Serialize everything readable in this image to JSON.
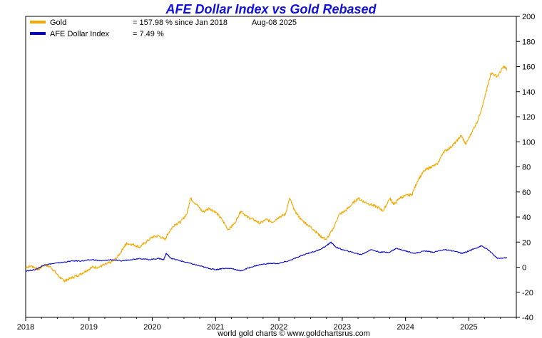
{
  "chart_data": {
    "type": "line",
    "title": "AFE Dollar Index vs Gold Rebased",
    "date_label": "Aug-08  2025",
    "footer": "world gold charts © www.goldchartsrus.com",
    "xlim": [
      2018.0,
      2025.75
    ],
    "ylim": [
      -40,
      200
    ],
    "x_ticks": [
      "2018",
      "2019",
      "2020",
      "2021",
      "2022",
      "2023",
      "2024",
      "2025"
    ],
    "y_ticks": [
      "200",
      "180",
      "160",
      "140",
      "120",
      "100",
      "80",
      "60",
      "40",
      "20",
      "0",
      "-20",
      "-40"
    ],
    "y_axis_side": "right",
    "grid": false,
    "legend_position": "top-left",
    "series": [
      {
        "name": "Gold",
        "legend_value": "= 157.98 % since Jan 2018",
        "color": "#f5a800",
        "x": [
          2018.0,
          2018.1,
          2018.2,
          2018.3,
          2018.4,
          2018.5,
          2018.6,
          2018.65,
          2018.75,
          2018.85,
          2018.95,
          2019.05,
          2019.15,
          2019.25,
          2019.35,
          2019.45,
          2019.55,
          2019.6,
          2019.7,
          2019.8,
          2019.9,
          2020.0,
          2020.1,
          2020.2,
          2020.25,
          2020.35,
          2020.45,
          2020.55,
          2020.6,
          2020.7,
          2020.8,
          2020.9,
          2021.0,
          2021.1,
          2021.2,
          2021.3,
          2021.4,
          2021.5,
          2021.6,
          2021.7,
          2021.8,
          2021.9,
          2022.0,
          2022.1,
          2022.17,
          2022.25,
          2022.35,
          2022.45,
          2022.55,
          2022.65,
          2022.75,
          2022.85,
          2022.95,
          2023.05,
          2023.15,
          2023.25,
          2023.35,
          2023.45,
          2023.55,
          2023.65,
          2023.75,
          2023.82,
          2023.9,
          2024.0,
          2024.1,
          2024.2,
          2024.3,
          2024.4,
          2024.5,
          2024.6,
          2024.7,
          2024.8,
          2024.88,
          2024.95,
          2025.05,
          2025.15,
          2025.25,
          2025.3,
          2025.35,
          2025.45,
          2025.55,
          2025.6
        ],
        "values": [
          0,
          1,
          -2,
          2,
          0,
          -6,
          -11,
          -10,
          -8,
          -6,
          -3,
          0,
          0,
          2,
          4,
          8,
          16,
          19,
          18,
          16,
          20,
          24,
          25,
          22,
          27,
          34,
          36,
          43,
          55,
          50,
          44,
          47,
          44,
          38,
          30,
          35,
          45,
          40,
          38,
          35,
          38,
          36,
          40,
          42,
          55,
          45,
          38,
          34,
          30,
          25,
          22,
          30,
          42,
          45,
          50,
          55,
          52,
          50,
          48,
          45,
          55,
          50,
          55,
          57,
          58,
          70,
          77,
          80,
          82,
          92,
          95,
          100,
          105,
          98,
          108,
          118,
          135,
          145,
          155,
          152,
          160,
          158
        ]
      },
      {
        "name": "AFE Dollar Index",
        "legend_value": "= 7.49 %",
        "color": "#0000cc",
        "x": [
          2018.0,
          2018.15,
          2018.3,
          2018.45,
          2018.6,
          2018.75,
          2018.9,
          2019.05,
          2019.2,
          2019.35,
          2019.5,
          2019.65,
          2019.8,
          2019.95,
          2020.1,
          2020.18,
          2020.22,
          2020.3,
          2020.45,
          2020.6,
          2020.75,
          2020.9,
          2021.0,
          2021.1,
          2021.25,
          2021.4,
          2021.55,
          2021.7,
          2021.85,
          2022.0,
          2022.15,
          2022.3,
          2022.45,
          2022.6,
          2022.75,
          2022.82,
          2022.9,
          2023.0,
          2023.15,
          2023.3,
          2023.45,
          2023.6,
          2023.75,
          2023.85,
          2024.0,
          2024.15,
          2024.3,
          2024.45,
          2024.6,
          2024.75,
          2024.9,
          2025.0,
          2025.1,
          2025.2,
          2025.3,
          2025.45,
          2025.6
        ],
        "values": [
          -3,
          -2,
          2,
          3,
          4,
          5,
          5,
          6,
          5,
          6,
          5,
          6,
          7,
          6,
          7,
          6,
          11,
          7,
          5,
          3,
          1,
          -1,
          -2,
          -1,
          -1,
          -3,
          0,
          2,
          3,
          3,
          5,
          8,
          11,
          13,
          17,
          20,
          16,
          14,
          12,
          10,
          14,
          12,
          12,
          15,
          13,
          11,
          13,
          12,
          14,
          13,
          11,
          13,
          15,
          17,
          14,
          7,
          7.5
        ]
      }
    ]
  }
}
